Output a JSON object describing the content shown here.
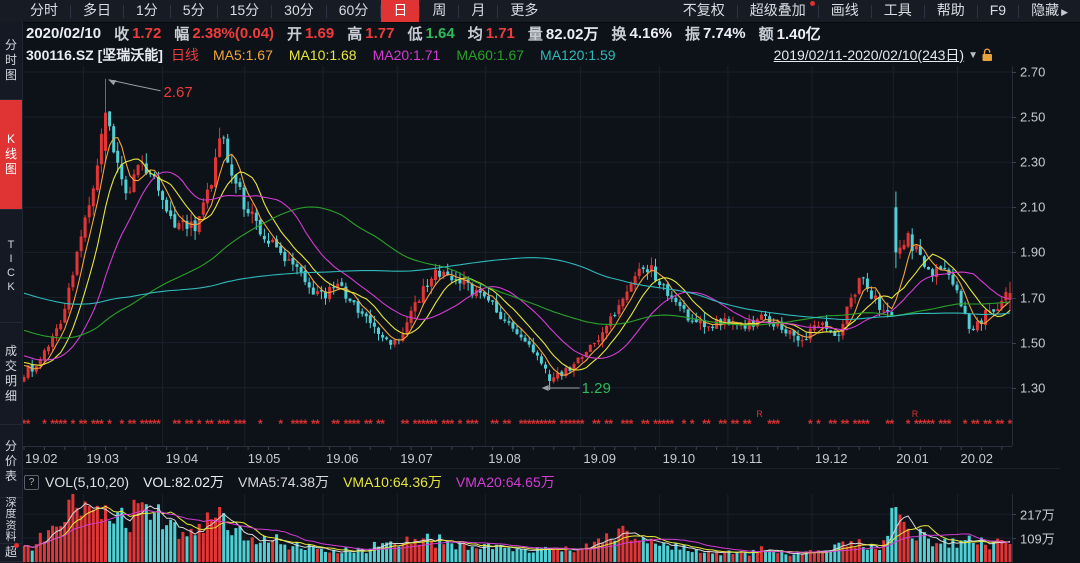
{
  "colors": {
    "up": "#e23535",
    "down": "#4fd0d4",
    "red_text": "#ef3b3b",
    "green_text": "#2eb95a",
    "white_text": "#eceef2",
    "ma5": "#f0a53c",
    "ma10": "#e6e63a",
    "ma20": "#d23cd2",
    "ma60": "#2aa22a",
    "ma120": "#2fb9b9",
    "vma5": "#d9d9d9",
    "vma10": "#e6e63a",
    "vma20": "#d23cd2",
    "grid": "#1a202b",
    "axis_text": "#c6cad2",
    "star": "#d83232",
    "accent": "#df3334",
    "annotation_arrow": "#9aa0a8",
    "lock": "#e8a23c"
  },
  "top_menu": {
    "periods": [
      {
        "key": "fenshi",
        "label": "分时",
        "selected": false
      },
      {
        "key": "duori",
        "label": "多日",
        "selected": false
      },
      {
        "key": "1min",
        "label": "1分",
        "selected": false
      },
      {
        "key": "5min",
        "label": "5分",
        "selected": false
      },
      {
        "key": "15min",
        "label": "15分",
        "selected": false
      },
      {
        "key": "30min",
        "label": "30分",
        "selected": false
      },
      {
        "key": "60min",
        "label": "60分",
        "selected": false
      },
      {
        "key": "day",
        "label": "日",
        "selected": true
      },
      {
        "key": "week",
        "label": "周",
        "selected": false
      },
      {
        "key": "month",
        "label": "月",
        "selected": false
      },
      {
        "key": "more",
        "label": "更多",
        "selected": false
      }
    ],
    "tools": [
      {
        "key": "no-adjust",
        "label": "不复权",
        "dot": false
      },
      {
        "key": "super-overlay",
        "label": "超级叠加",
        "dot": true
      },
      {
        "key": "draw-line",
        "label": "画线",
        "dot": false
      },
      {
        "key": "tools",
        "label": "工具",
        "dot": false
      },
      {
        "key": "help",
        "label": "帮助",
        "dot": false
      },
      {
        "key": "f9",
        "label": "F9",
        "dot": false
      },
      {
        "key": "hide",
        "label": "隐藏",
        "dot": false,
        "arrow": true
      }
    ]
  },
  "quote_bar": {
    "date": "2020/02/10",
    "fields": [
      {
        "key": "close",
        "label": "收",
        "value": "1.72",
        "color": "red"
      },
      {
        "key": "change",
        "label": "幅",
        "value": "2.38%(0.04)",
        "color": "red"
      },
      {
        "key": "open",
        "label": "开",
        "value": "1.69",
        "color": "red"
      },
      {
        "key": "high",
        "label": "高",
        "value": "1.77",
        "color": "red"
      },
      {
        "key": "low",
        "label": "低",
        "value": "1.64",
        "color": "green"
      },
      {
        "key": "avg",
        "label": "均",
        "value": "1.71",
        "color": "red"
      },
      {
        "key": "volume",
        "label": "量",
        "value": "82.02万",
        "color": "white"
      },
      {
        "key": "turnover",
        "label": "换",
        "value": "4.16%",
        "color": "white"
      },
      {
        "key": "amplitude",
        "label": "振",
        "value": "7.74%",
        "color": "white"
      },
      {
        "key": "amount",
        "label": "额",
        "value": "1.40亿",
        "color": "white"
      }
    ]
  },
  "indicator_bar": {
    "symbol": "300116.SZ",
    "name": "[坚瑞沃能]",
    "line_type": "日线",
    "mas": [
      {
        "label": "MA5:1.67",
        "color": "ma5"
      },
      {
        "label": "MA10:1.68",
        "color": "ma10"
      },
      {
        "label": "MA20:1.71",
        "color": "ma20"
      },
      {
        "label": "MA60:1.67",
        "color": "ma60"
      },
      {
        "label": "MA120:1.59",
        "color": "ma120"
      }
    ],
    "range_label": "2019/02/11-2020/02/10(243日)",
    "range_caret": "▼"
  },
  "sidebar": {
    "items": [
      {
        "key": "fenshi-tu",
        "label": "分时图",
        "selected": false,
        "h": 78
      },
      {
        "key": "kline-tu",
        "label": "K线图",
        "selected": true,
        "h": 110
      },
      {
        "key": "tick",
        "label": "TICK",
        "selected": false,
        "h": 113
      },
      {
        "key": "chengjiao-mingxi",
        "label": "成交明细",
        "selected": false,
        "h": 102
      },
      {
        "key": "fenjia-biao",
        "label": "分价表",
        "selected": false,
        "h": 73
      },
      {
        "key": "shendu-ziliao",
        "label": "深度资料",
        "selected": false,
        "h": 46
      },
      {
        "key": "chao",
        "label": "超",
        "selected": false,
        "h": 18
      }
    ]
  },
  "volume_header": {
    "help_icon": "?",
    "title": "VOL(5,10,20)",
    "items": [
      {
        "label": "VOL:82.02万",
        "color": "white_text"
      },
      {
        "label": "VMA5:74.38万",
        "color": "vma5"
      },
      {
        "label": "VMA10:64.36万",
        "color": "vma10"
      },
      {
        "label": "VMA20:64.65万",
        "color": "vma20"
      }
    ]
  },
  "chart_data": {
    "type": "candlestick+volume",
    "title": "300116.SZ 坚瑞沃能 日线 2019/02/11-2020/02/10",
    "days": 243,
    "seed": 20200210,
    "ylim": [
      1.25,
      2.75
    ],
    "price_ticks": [
      "2.70",
      "2.50",
      "2.30",
      "2.10",
      "1.90",
      "1.70",
      "1.50",
      "1.30"
    ],
    "volume_ticks": [
      {
        "label": "217万",
        "v": 217
      },
      {
        "label": "109万",
        "v": 109
      }
    ],
    "volume_max": 300,
    "months": [
      {
        "label": "19.02",
        "f": 0.0
      },
      {
        "label": "19.03",
        "f": 0.062
      },
      {
        "label": "19.04",
        "f": 0.142
      },
      {
        "label": "19.05",
        "f": 0.225
      },
      {
        "label": "19.06",
        "f": 0.304
      },
      {
        "label": "19.07",
        "f": 0.379
      },
      {
        "label": "19.08",
        "f": 0.468
      },
      {
        "label": "19.09",
        "f": 0.564
      },
      {
        "label": "19.10",
        "f": 0.644
      },
      {
        "label": "19.11",
        "f": 0.713
      },
      {
        "label": "19.12",
        "f": 0.798
      },
      {
        "label": "20.01",
        "f": 0.88
      },
      {
        "label": "20.02",
        "f": 0.945
      }
    ],
    "price_anchors": [
      [
        0.0,
        1.36
      ],
      [
        0.02,
        1.44
      ],
      [
        0.04,
        1.62
      ],
      [
        0.055,
        1.9
      ],
      [
        0.07,
        2.2
      ],
      [
        0.084,
        2.52
      ],
      [
        0.094,
        2.28
      ],
      [
        0.105,
        2.15
      ],
      [
        0.118,
        2.32
      ],
      [
        0.135,
        2.18
      ],
      [
        0.155,
        2.02
      ],
      [
        0.175,
        2.0
      ],
      [
        0.195,
        2.3
      ],
      [
        0.2,
        2.47
      ],
      [
        0.21,
        2.26
      ],
      [
        0.225,
        2.1
      ],
      [
        0.245,
        1.96
      ],
      [
        0.27,
        1.86
      ],
      [
        0.3,
        1.7
      ],
      [
        0.32,
        1.76
      ],
      [
        0.34,
        1.63
      ],
      [
        0.36,
        1.56
      ],
      [
        0.375,
        1.49
      ],
      [
        0.39,
        1.6
      ],
      [
        0.41,
        1.78
      ],
      [
        0.425,
        1.83
      ],
      [
        0.445,
        1.76
      ],
      [
        0.465,
        1.71
      ],
      [
        0.485,
        1.62
      ],
      [
        0.505,
        1.54
      ],
      [
        0.52,
        1.46
      ],
      [
        0.535,
        1.33
      ],
      [
        0.55,
        1.37
      ],
      [
        0.57,
        1.44
      ],
      [
        0.59,
        1.56
      ],
      [
        0.608,
        1.72
      ],
      [
        0.618,
        1.8
      ],
      [
        0.635,
        1.83
      ],
      [
        0.65,
        1.73
      ],
      [
        0.67,
        1.63
      ],
      [
        0.69,
        1.58
      ],
      [
        0.71,
        1.6
      ],
      [
        0.73,
        1.56
      ],
      [
        0.748,
        1.62
      ],
      [
        0.77,
        1.56
      ],
      [
        0.79,
        1.52
      ],
      [
        0.81,
        1.58
      ],
      [
        0.825,
        1.54
      ],
      [
        0.84,
        1.7
      ],
      [
        0.85,
        1.8
      ],
      [
        0.862,
        1.7
      ],
      [
        0.875,
        1.62
      ],
      [
        0.882,
        1.64
      ],
      [
        0.886,
        1.9
      ],
      [
        0.896,
        1.96
      ],
      [
        0.91,
        1.88
      ],
      [
        0.922,
        1.82
      ],
      [
        0.932,
        1.86
      ],
      [
        0.944,
        1.76
      ],
      [
        0.952,
        1.64
      ],
      [
        0.962,
        1.55
      ],
      [
        0.975,
        1.62
      ],
      [
        0.988,
        1.66
      ],
      [
        1.0,
        1.72
      ]
    ],
    "volume_anchors": [
      [
        0.0,
        55
      ],
      [
        0.02,
        110
      ],
      [
        0.04,
        240
      ],
      [
        0.06,
        285
      ],
      [
        0.084,
        260
      ],
      [
        0.1,
        200
      ],
      [
        0.13,
        225
      ],
      [
        0.16,
        140
      ],
      [
        0.195,
        205
      ],
      [
        0.21,
        150
      ],
      [
        0.23,
        110
      ],
      [
        0.27,
        85
      ],
      [
        0.3,
        65
      ],
      [
        0.34,
        55
      ],
      [
        0.375,
        85
      ],
      [
        0.41,
        105
      ],
      [
        0.44,
        75
      ],
      [
        0.47,
        65
      ],
      [
        0.5,
        48
      ],
      [
        0.535,
        55
      ],
      [
        0.57,
        65
      ],
      [
        0.61,
        130
      ],
      [
        0.635,
        100
      ],
      [
        0.66,
        65
      ],
      [
        0.7,
        42
      ],
      [
        0.73,
        40
      ],
      [
        0.75,
        55
      ],
      [
        0.78,
        42
      ],
      [
        0.81,
        48
      ],
      [
        0.84,
        85
      ],
      [
        0.855,
        75
      ],
      [
        0.87,
        55
      ],
      [
        0.884,
        250
      ],
      [
        0.9,
        130
      ],
      [
        0.92,
        95
      ],
      [
        0.94,
        80
      ],
      [
        0.955,
        100
      ],
      [
        0.975,
        90
      ],
      [
        1.0,
        82
      ]
    ],
    "peak": {
      "t": 0.084,
      "high": 2.67,
      "label": "2.67"
    },
    "trough": {
      "t": 0.535,
      "low": 1.29,
      "label": "1.29"
    },
    "jan_spike": {
      "t": 0.884,
      "open": 2.1,
      "high": 2.17,
      "low": 1.83,
      "close": 1.9,
      "volume": 250
    },
    "last_candle": {
      "open": 1.69,
      "high": 1.77,
      "low": 1.64,
      "close": 1.72,
      "volume": 82.02
    },
    "ma_periods": [
      5,
      10,
      20,
      60,
      120
    ],
    "vma_periods": [
      5,
      10,
      20
    ],
    "history_start": 2.05,
    "history_end": 1.4,
    "event_row": {
      "star": "*",
      "density": 0.58,
      "r_marks": [
        {
          "f": 0.745,
          "label": "R"
        },
        {
          "f": 0.902,
          "label": "R"
        }
      ]
    }
  }
}
